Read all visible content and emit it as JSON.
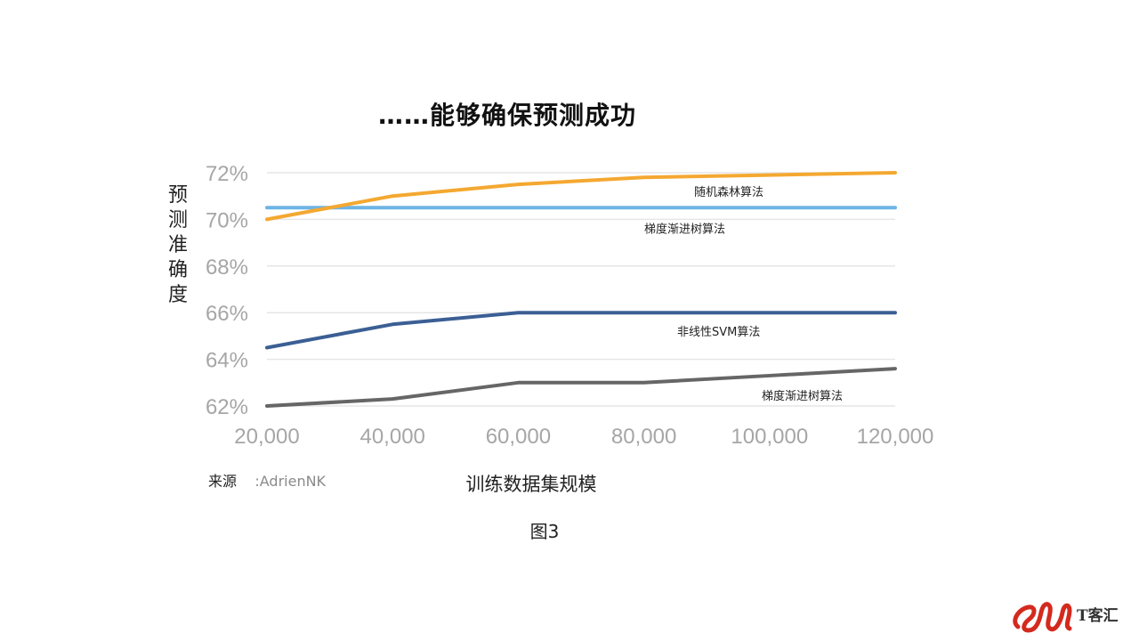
{
  "slide": {
    "title": "……能够确保预测成功",
    "caption": "图3",
    "source_label": "来源",
    "source_value": ":AdrienNK",
    "logo_text": "T客汇"
  },
  "chart_data": {
    "type": "line",
    "title": "……能够确保预测成功",
    "xlabel": "训练数据集规模",
    "ylabel": "预测准确度",
    "x": [
      20000,
      40000,
      60000,
      80000,
      100000,
      120000
    ],
    "x_tick_labels": [
      "20,000",
      "40,000",
      "60,000",
      "80,000",
      "100,000",
      "120,000"
    ],
    "y_tick_labels": [
      "72%",
      "70%",
      "68%",
      "66%",
      "64%",
      "62%"
    ],
    "y_ticks": [
      72,
      70,
      68,
      66,
      64,
      62
    ],
    "ylim": [
      62,
      72
    ],
    "xlim": [
      20000,
      120000
    ],
    "grid": true,
    "series": [
      {
        "name": "随机森林算法",
        "color": "#F4A831",
        "values": [
          70.0,
          71.0,
          71.5,
          71.8,
          71.9,
          72.0
        ]
      },
      {
        "name": "梯度渐进树算法",
        "color": "#6CB4E4",
        "values": [
          70.5,
          70.5,
          70.5,
          70.5,
          70.5,
          70.5
        ]
      },
      {
        "name": "非线性SVM算法",
        "color": "#3B5F94",
        "values": [
          64.5,
          65.5,
          66.0,
          66.0,
          66.0,
          66.0
        ]
      },
      {
        "name": "梯度渐进树算法",
        "color": "#666666",
        "values": [
          62.0,
          62.3,
          63.0,
          63.0,
          63.3,
          63.6
        ]
      }
    ]
  },
  "colors": {
    "grid": "#E6E6E6",
    "tick_text": "#A6A6A6",
    "logo_red": "#D42A1E"
  }
}
